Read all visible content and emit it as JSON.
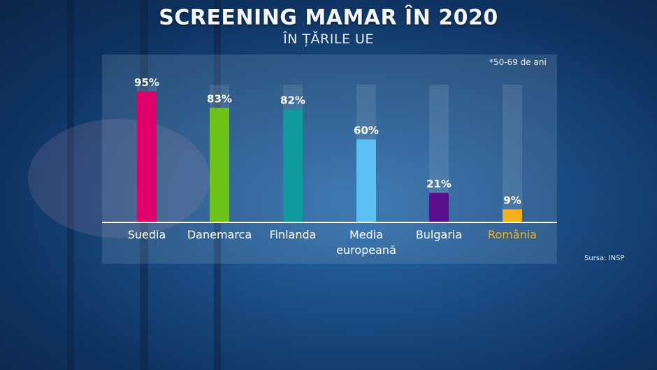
{
  "title": "SCREENING MAMAR ÎN 2020",
  "subtitle": "ÎN ȚĂRILE UE",
  "note": "*50-69 de ani",
  "source": "Sursa: INSP",
  "chart_data": {
    "type": "bar",
    "title": "SCREENING MAMAR ÎN 2020",
    "subtitle": "ÎN ȚĂRILE UE",
    "categories": [
      [
        "Suedia"
      ],
      [
        "Danemarca"
      ],
      [
        "Finlanda"
      ],
      [
        "Media",
        "europeană"
      ],
      [
        "Bulgaria"
      ],
      [
        "România"
      ]
    ],
    "values": [
      95,
      83,
      82,
      60,
      21,
      9
    ],
    "value_labels": [
      "95%",
      "83%",
      "82%",
      "60%",
      "21%",
      "9%"
    ],
    "colors": [
      "#e0006a",
      "#6cc11b",
      "#0f9a9e",
      "#5cc0f2",
      "#5a0f8c",
      "#f2b21c"
    ],
    "label_colors": [
      "#ffffff",
      "#ffffff",
      "#ffffff",
      "#ffffff",
      "#ffffff",
      "#f2b21c"
    ],
    "ylim": [
      0,
      100
    ],
    "grid": false,
    "legend": "none"
  }
}
